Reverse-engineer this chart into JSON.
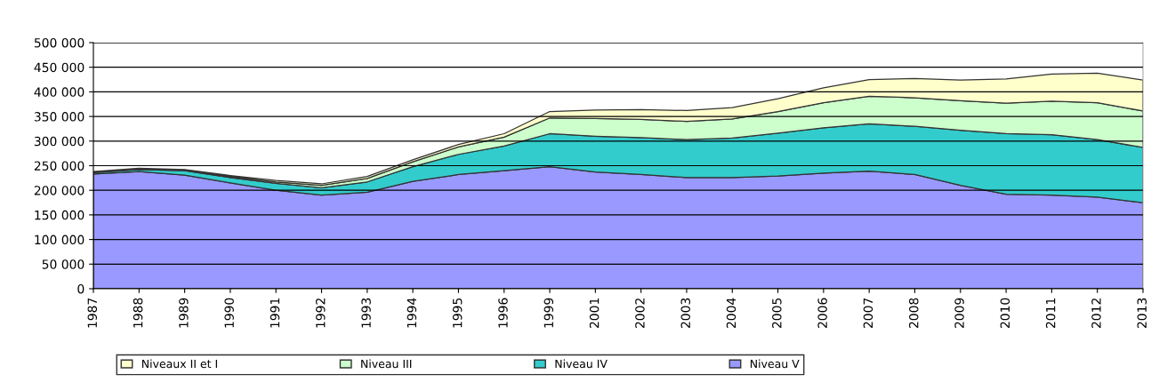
{
  "chart_data": {
    "type": "area",
    "stacked": true,
    "grid": "y",
    "legend": "bottom",
    "categories": [
      "1987",
      "1988",
      "1989",
      "1990",
      "1991",
      "1992",
      "1993",
      "1994",
      "1995",
      "1996",
      "1999",
      "2001",
      "2002",
      "2003",
      "2004",
      "2005",
      "2006",
      "2007",
      "2008",
      "2009",
      "2010",
      "2011",
      "2012",
      "2013"
    ],
    "series": [
      {
        "name": "Niveau V",
        "color": "#9999ff",
        "values": [
          233000,
          238000,
          231000,
          215000,
          200000,
          190000,
          196000,
          218000,
          232000,
          240000,
          248000,
          237000,
          232000,
          226000,
          226000,
          229000,
          235000,
          239000,
          232000,
          210000,
          192000,
          190000,
          186000,
          175000
        ]
      },
      {
        "name": "Niveau IV",
        "color": "#33cccc",
        "values": [
          3000,
          4000,
          9000,
          11000,
          14000,
          15000,
          21000,
          30000,
          41000,
          50000,
          67000,
          73000,
          75000,
          77000,
          80000,
          87000,
          92000,
          96000,
          98000,
          112000,
          123000,
          123000,
          117000,
          112000
        ]
      },
      {
        "name": "Niveau III",
        "color": "#ccffcc",
        "values": [
          1000,
          1000,
          1000,
          2000,
          3000,
          5000,
          7000,
          10000,
          15000,
          18000,
          32000,
          36000,
          37000,
          37000,
          39000,
          44000,
          51000,
          56000,
          58000,
          60000,
          62000,
          68000,
          75000,
          74000
        ]
      },
      {
        "name": "Niveaux II et I",
        "color": "#ffffcc",
        "values": [
          1000,
          2000,
          1000,
          2000,
          3000,
          3000,
          4000,
          4000,
          5000,
          7000,
          13000,
          17000,
          20000,
          22000,
          23000,
          26000,
          30000,
          34000,
          39000,
          42000,
          49000,
          55000,
          60000,
          63000
        ]
      }
    ],
    "ylim": [
      0,
      500000
    ],
    "yticks": [
      0,
      {
        "value": 50000,
        "label": "50 000"
      },
      {
        "value": 100000,
        "label": "100 000"
      },
      {
        "value": 150000,
        "label": "150 000"
      },
      {
        "value": 200000,
        "label": "200 000"
      },
      {
        "value": 250000,
        "label": "250 000"
      },
      {
        "value": 300000,
        "label": "300 000"
      },
      {
        "value": 350000,
        "label": "350 000"
      },
      {
        "value": 400000,
        "label": "400 000"
      },
      {
        "value": 450000,
        "label": "450 000"
      },
      {
        "value": 500000,
        "label": "500 000"
      }
    ]
  }
}
